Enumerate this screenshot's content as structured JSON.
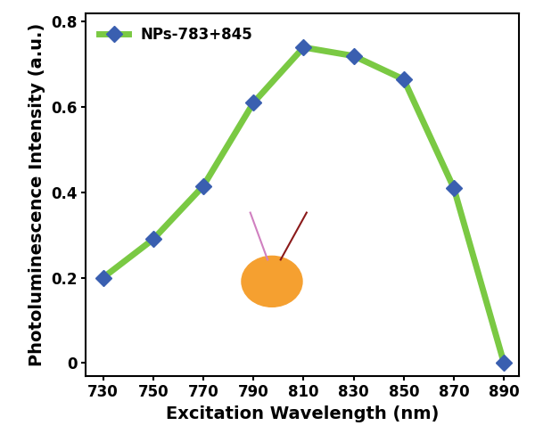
{
  "chart_data": {
    "type": "line",
    "x_label": "Excitation Wavelength (nm)",
    "y_label": "Photoluminescence Intensity (a.u.)",
    "x": [
      730,
      750,
      770,
      790,
      810,
      830,
      850,
      870,
      890
    ],
    "series": [
      {
        "name": "NPs-783+845",
        "color": "#7ac943",
        "marker": "D",
        "line_style": "solid",
        "values": [
          0.2,
          0.29,
          0.415,
          0.61,
          0.74,
          0.72,
          0.665,
          0.41,
          0.0
        ]
      }
    ],
    "xlim": [
      723,
      896
    ],
    "xticks": [
      730,
      750,
      770,
      790,
      810,
      830,
      850,
      870,
      890
    ],
    "ylim": [
      -0.03,
      0.82
    ],
    "yticks": [
      0,
      0.2,
      0.4,
      0.6,
      0.8
    ],
    "legend": "upper left",
    "grid": false
  }
}
